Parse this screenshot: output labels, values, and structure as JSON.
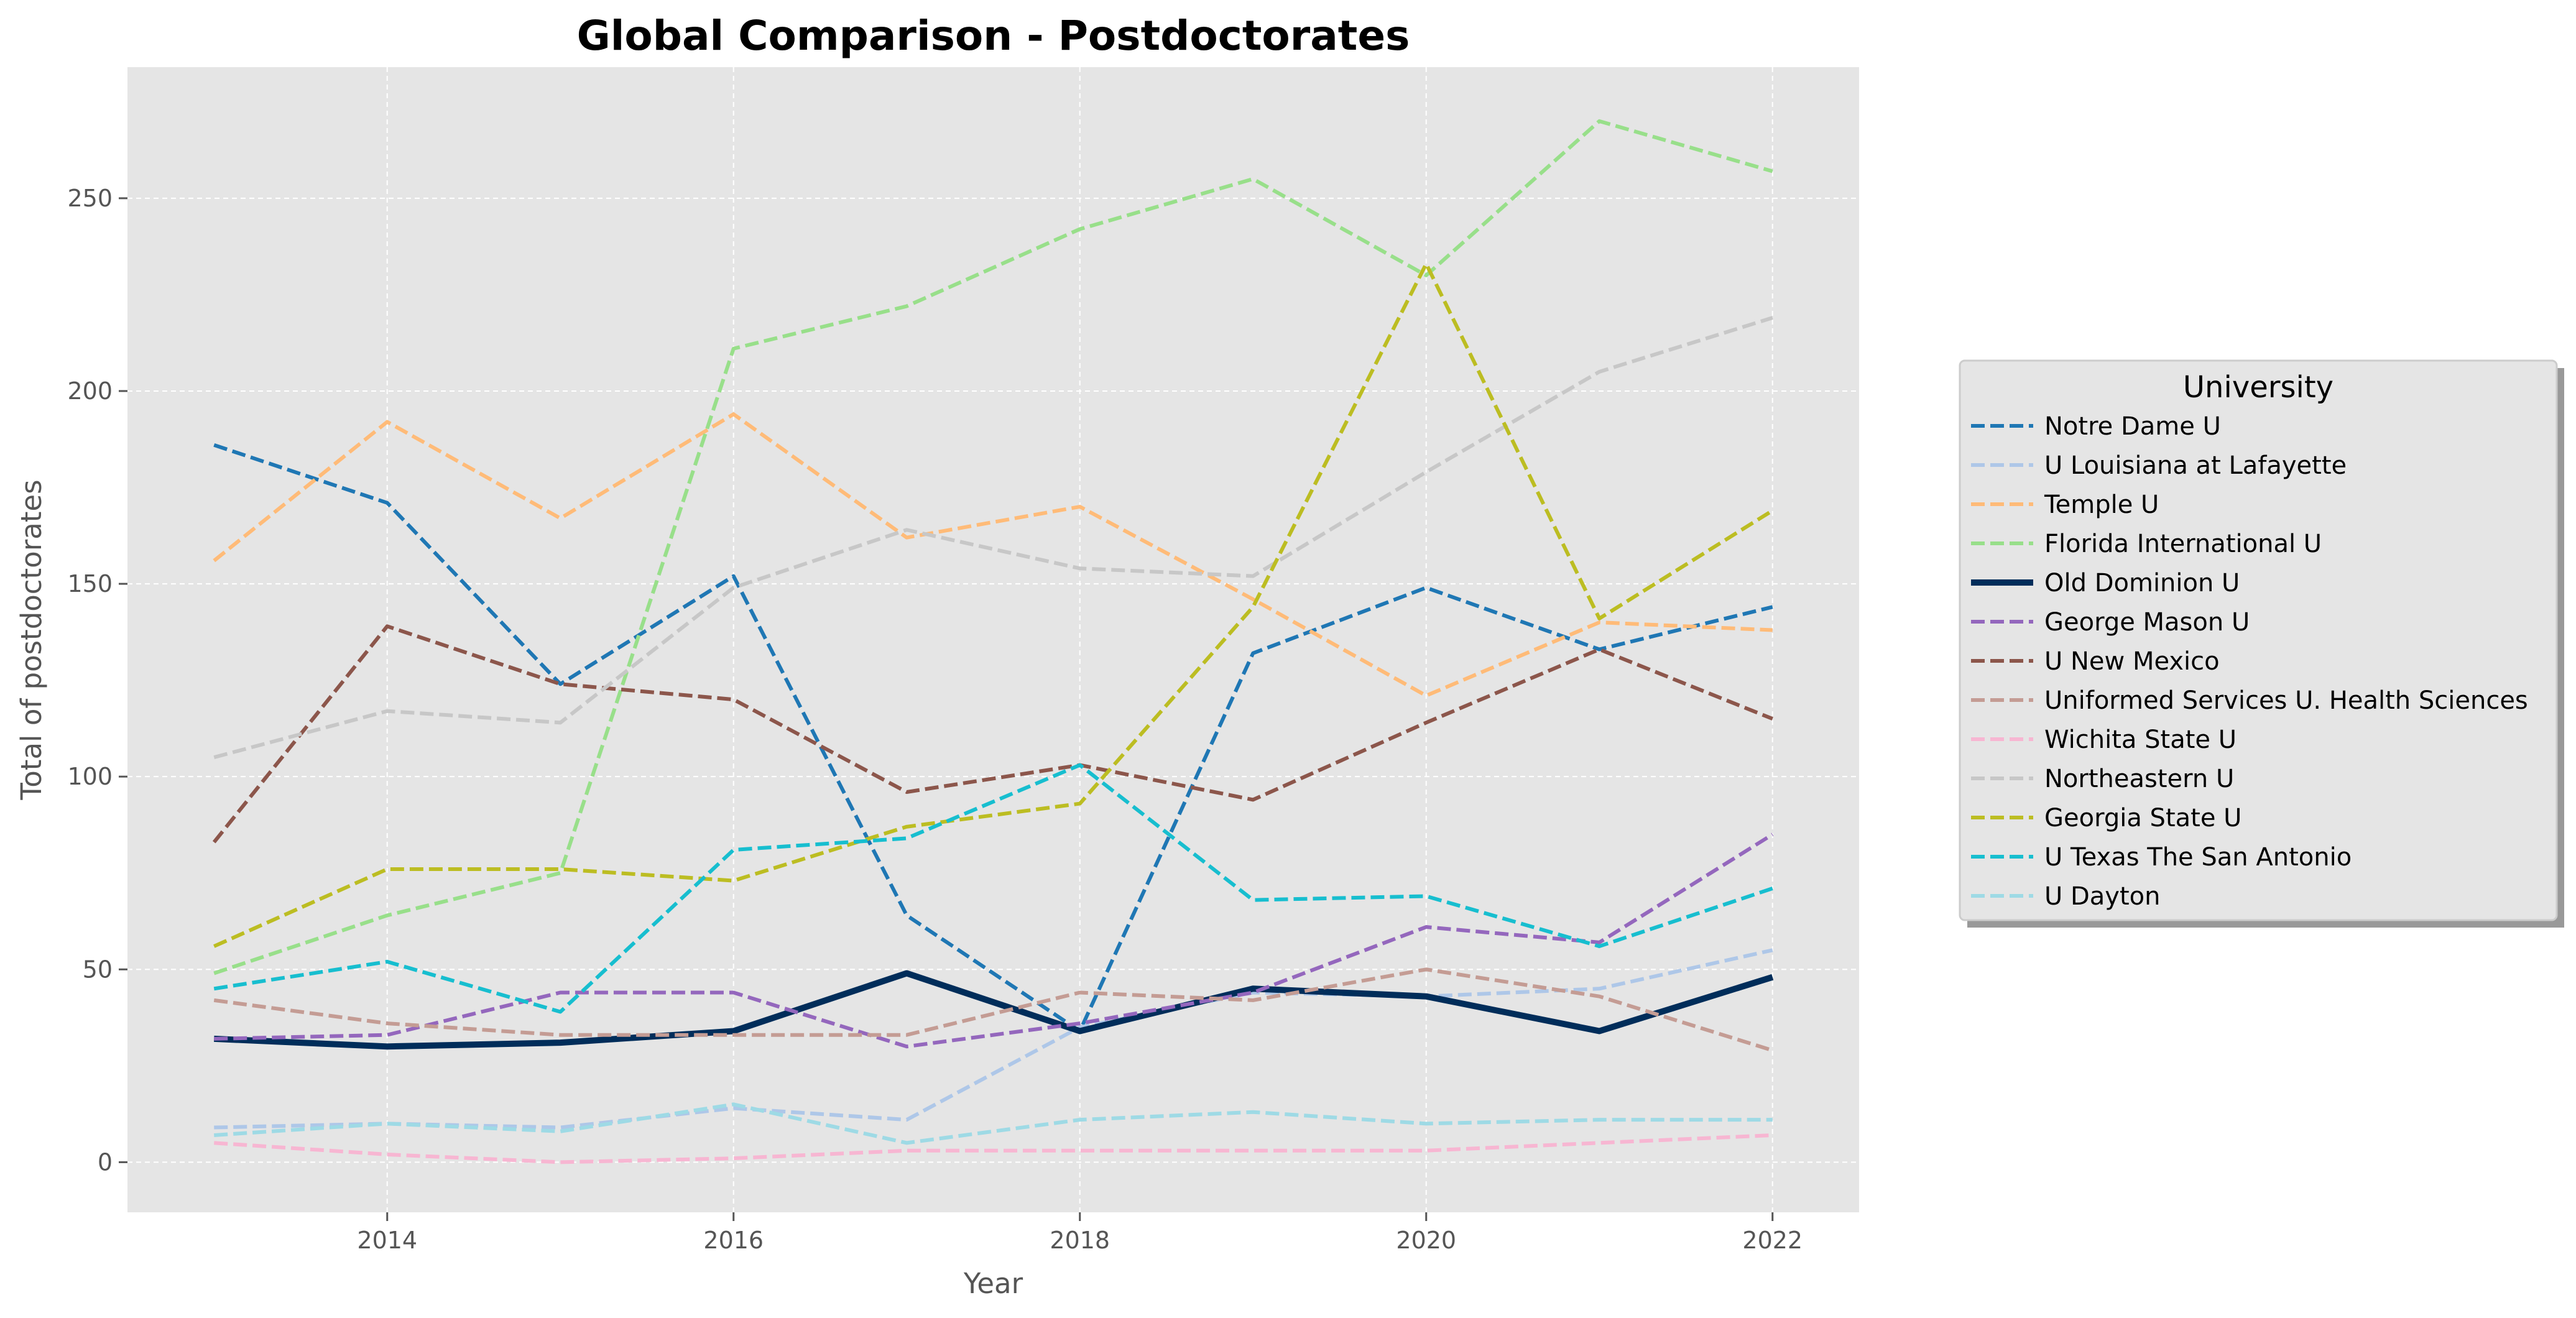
{
  "chart_data": {
    "type": "line",
    "title": "Global Comparison - Postdoctorates",
    "xlabel": "Year",
    "ylabel": "Total of postdoctorates",
    "x": [
      2013,
      2014,
      2015,
      2016,
      2017,
      2018,
      2019,
      2020,
      2021,
      2022
    ],
    "xlim": [
      2012.5,
      2022.5
    ],
    "ylim": [
      -13,
      284
    ],
    "xticks": [
      2014,
      2016,
      2018,
      2020,
      2022
    ],
    "yticks": [
      0,
      50,
      100,
      150,
      200,
      250
    ],
    "grid": true,
    "legend_title": "University",
    "legend_position": "center-right outside",
    "series": [
      {
        "name": "Notre Dame U",
        "color": "#1f77b4",
        "style": "dashed",
        "values": [
          186,
          171,
          124,
          152,
          64,
          34,
          132,
          149,
          133,
          144
        ]
      },
      {
        "name": "U Louisiana at Lafayette",
        "color": "#aec7e8",
        "style": "dashed",
        "values": [
          9,
          10,
          9,
          14,
          11,
          35,
          44,
          43,
          45,
          55
        ]
      },
      {
        "name": "Temple U",
        "color": "#ffbb78",
        "style": "dashed",
        "values": [
          156,
          192,
          167,
          194,
          162,
          170,
          146,
          121,
          140,
          138
        ]
      },
      {
        "name": "Florida International U",
        "color": "#98df8a",
        "style": "dashed",
        "values": [
          49,
          64,
          75,
          211,
          222,
          242,
          255,
          230,
          270,
          257
        ]
      },
      {
        "name": "Old Dominion U",
        "color": "#002d5a",
        "style": "solid",
        "values": [
          32,
          30,
          31,
          34,
          49,
          34,
          45,
          43,
          34,
          48
        ]
      },
      {
        "name": "George Mason U",
        "color": "#9467bd",
        "style": "dashed",
        "values": [
          32,
          33,
          44,
          44,
          30,
          36,
          44,
          61,
          57,
          85
        ]
      },
      {
        "name": "U New Mexico",
        "color": "#8c564b",
        "style": "dashed",
        "values": [
          83,
          139,
          124,
          120,
          96,
          103,
          94,
          114,
          133,
          115
        ]
      },
      {
        "name": "Uniformed Services U. Health Sciences",
        "color": "#c49c94",
        "style": "dashed",
        "values": [
          42,
          36,
          33,
          33,
          33,
          44,
          42,
          50,
          43,
          29
        ]
      },
      {
        "name": "Wichita State U",
        "color": "#f7b6d2",
        "style": "dashed",
        "values": [
          5,
          2,
          0,
          1,
          3,
          3,
          3,
          3,
          5,
          7
        ]
      },
      {
        "name": "Northeastern U",
        "color": "#c7c7c7",
        "style": "dashed",
        "values": [
          105,
          117,
          114,
          149,
          164,
          154,
          152,
          179,
          205,
          219
        ]
      },
      {
        "name": "Georgia State U",
        "color": "#bcbd22",
        "style": "dashed",
        "values": [
          56,
          76,
          76,
          73,
          87,
          93,
          144,
          233,
          141,
          169
        ]
      },
      {
        "name": "U Texas The San Antonio",
        "color": "#17becf",
        "style": "dashed",
        "values": [
          45,
          52,
          39,
          81,
          84,
          103,
          68,
          69,
          56,
          71
        ]
      },
      {
        "name": "U Dayton",
        "color": "#9edae5",
        "style": "dashed",
        "values": [
          7,
          10,
          8,
          15,
          5,
          11,
          13,
          10,
          11,
          11
        ]
      }
    ]
  }
}
